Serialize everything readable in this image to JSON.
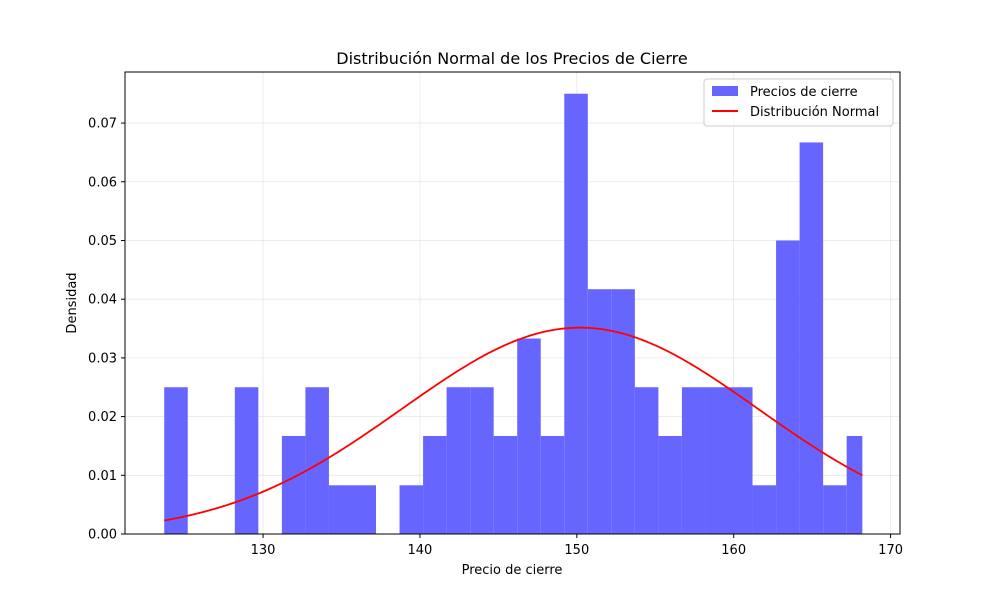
{
  "chart_data": {
    "type": "bar",
    "title": "Distribución Normal de los Precios de Cierre",
    "xlabel": "Precio de cierre",
    "ylabel": "Densidad",
    "xlim": [
      121.2,
      170.6
    ],
    "ylim": [
      0,
      0.0787
    ],
    "xticks": [
      130,
      140,
      150,
      160,
      170
    ],
    "yticks": [
      0.0,
      0.01,
      0.02,
      0.03,
      0.04,
      0.05,
      0.06,
      0.07
    ],
    "grid": true,
    "legend_position": "top-right",
    "histogram": {
      "name": "Precios de cierre",
      "color": "#6666ff",
      "bins": [
        {
          "x0": 123.7,
          "x1": 125.2,
          "density": 0.025
        },
        {
          "x0": 125.2,
          "x1": 126.7,
          "density": 0
        },
        {
          "x0": 126.7,
          "x1": 128.2,
          "density": 0
        },
        {
          "x0": 128.2,
          "x1": 129.7,
          "density": 0.025
        },
        {
          "x0": 129.7,
          "x1": 131.2,
          "density": 0
        },
        {
          "x0": 131.2,
          "x1": 132.7,
          "density": 0.0167
        },
        {
          "x0": 132.7,
          "x1": 134.2,
          "density": 0.025
        },
        {
          "x0": 134.2,
          "x1": 135.7,
          "density": 0.0083
        },
        {
          "x0": 135.7,
          "x1": 137.2,
          "density": 0.0083
        },
        {
          "x0": 137.2,
          "x1": 138.7,
          "density": 0
        },
        {
          "x0": 138.7,
          "x1": 140.2,
          "density": 0.0083
        },
        {
          "x0": 140.2,
          "x1": 141.7,
          "density": 0.0167
        },
        {
          "x0": 141.7,
          "x1": 143.2,
          "density": 0.025
        },
        {
          "x0": 143.2,
          "x1": 144.7,
          "density": 0.025
        },
        {
          "x0": 144.7,
          "x1": 146.2,
          "density": 0.0167
        },
        {
          "x0": 146.2,
          "x1": 147.7,
          "density": 0.0333
        },
        {
          "x0": 147.7,
          "x1": 149.2,
          "density": 0.0167
        },
        {
          "x0": 149.2,
          "x1": 150.7,
          "density": 0.075
        },
        {
          "x0": 150.7,
          "x1": 152.2,
          "density": 0.0417
        },
        {
          "x0": 152.2,
          "x1": 153.7,
          "density": 0.0417
        },
        {
          "x0": 153.7,
          "x1": 155.2,
          "density": 0.025
        },
        {
          "x0": 155.2,
          "x1": 156.7,
          "density": 0.0167
        },
        {
          "x0": 156.7,
          "x1": 158.2,
          "density": 0.025
        },
        {
          "x0": 158.2,
          "x1": 159.7,
          "density": 0.025
        },
        {
          "x0": 159.7,
          "x1": 161.2,
          "density": 0.025
        },
        {
          "x0": 161.2,
          "x1": 162.7,
          "density": 0.0083
        },
        {
          "x0": 162.7,
          "x1": 164.2,
          "density": 0.05
        },
        {
          "x0": 164.2,
          "x1": 165.7,
          "density": 0.0667
        },
        {
          "x0": 165.7,
          "x1": 167.2,
          "density": 0.0083
        },
        {
          "x0": 167.2,
          "x1": 168.2,
          "density": 0.0167
        }
      ]
    },
    "normal_curve": {
      "name": "Distribución Normal",
      "color": "#ff0000",
      "mean": 150.2,
      "std": 11.35,
      "x_range": [
        123.7,
        168.2
      ]
    }
  }
}
